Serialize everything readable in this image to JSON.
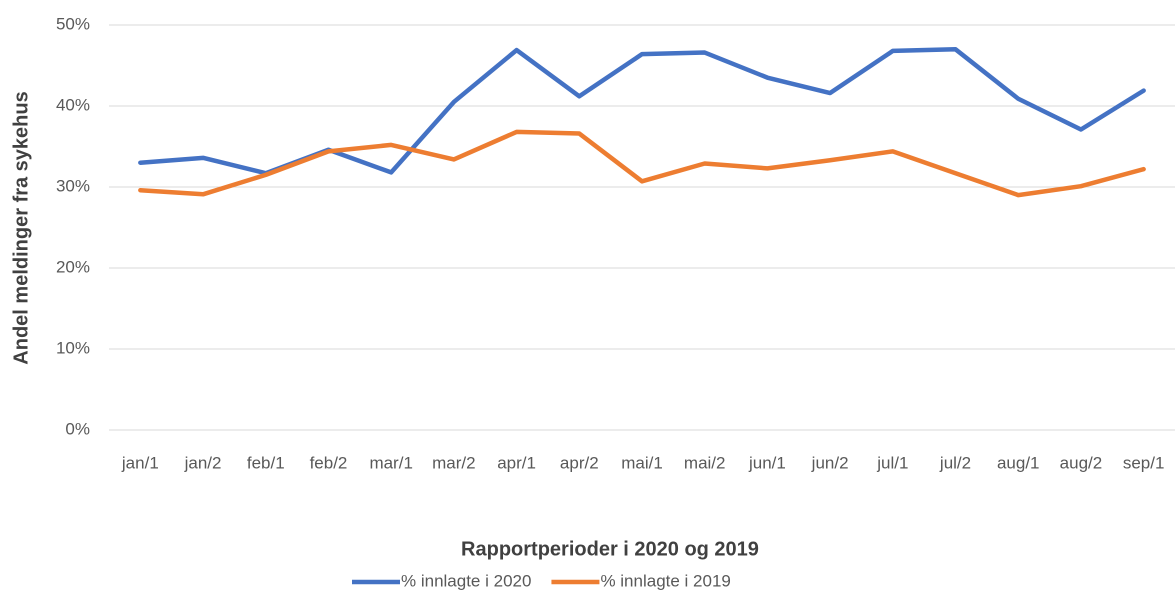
{
  "chart_data": {
    "type": "line",
    "x_label": "Rapportperioder i 2020 og 2019",
    "y_label": "Andel meldinger fra sykehus",
    "categories": [
      "jan/1",
      "jan/2",
      "feb/1",
      "feb/2",
      "mar/1",
      "mar/2",
      "apr/1",
      "apr/2",
      "mai/1",
      "mai/2",
      "jun/1",
      "jun/2",
      "jul/1",
      "jul/2",
      "aug/1",
      "aug/2",
      "sep/1"
    ],
    "series": [
      {
        "name": "% innlagte i 2020",
        "color": "#4472c4",
        "values": [
          33,
          33.6,
          31.7,
          34.6,
          31.8,
          40.5,
          46.9,
          41.2,
          46.4,
          46.6,
          43.5,
          41.6,
          46.8,
          47,
          40.9,
          37.1,
          41.9
        ]
      },
      {
        "name": "% innlagte i 2019",
        "color": "#ed7d31",
        "values": [
          29.6,
          29.1,
          31.5,
          34.4,
          35.2,
          33.4,
          36.8,
          36.6,
          30.7,
          32.9,
          32.3,
          33.3,
          34.4,
          31.7,
          29,
          30.1,
          32.2
        ]
      }
    ],
    "ylim": [
      0,
      50
    ],
    "yticks": [
      {
        "value": 0,
        "label": "0%"
      },
      {
        "value": 10,
        "label": "10%"
      },
      {
        "value": 20,
        "label": "20%"
      },
      {
        "value": 30,
        "label": "30%"
      },
      {
        "value": 40,
        "label": "40%"
      },
      {
        "value": 50,
        "label": "50%"
      }
    ],
    "grid": true,
    "legend": "bottom"
  }
}
